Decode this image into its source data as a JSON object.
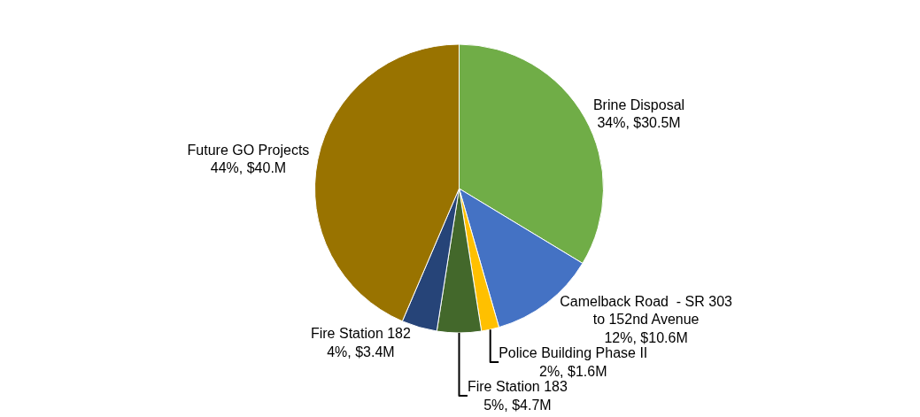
{
  "chart_data": {
    "type": "pie",
    "categories": [
      "Brine Disposal",
      "Camelback Road  - SR 303 to 152nd Avenue",
      "Police Building Phase II",
      "Fire Station 183",
      "Fire Station 182",
      "Future GO Projects"
    ],
    "values": [
      34,
      12,
      2,
      5,
      4,
      44
    ],
    "value_labels": [
      "34%, $30.5M",
      "12%, $10.6M",
      "2%, $1.6M",
      "5%, $4.7M",
      "4%, $3.4M",
      "44%, $40.M"
    ],
    "colors": [
      "#70ad47",
      "#4472c4",
      "#ffc000",
      "#43682b",
      "#264478",
      "#997300"
    ],
    "legend": false
  }
}
